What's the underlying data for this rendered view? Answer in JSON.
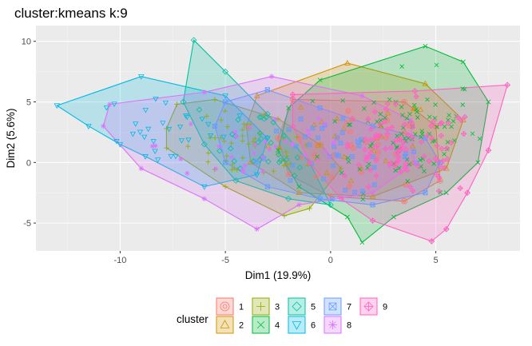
{
  "chart_data": {
    "type": "scatter",
    "title": "cluster:kmeans k:9",
    "xlabel": "Dim1 (19.9%)",
    "ylabel": "Dim2 (5.6%)",
    "xlim": [
      -14,
      9
    ],
    "ylim": [
      -7.3,
      11.3
    ],
    "x_ticks": [
      -10,
      -5,
      0,
      5
    ],
    "y_ticks": [
      -5,
      0,
      5,
      10
    ],
    "x_tick_labels": [
      "-10",
      "-5",
      "0",
      "5"
    ],
    "y_tick_labels": [
      "-5",
      "0",
      "5",
      "10"
    ],
    "grid": true,
    "legend": {
      "title": "cluster",
      "position": "bottom"
    },
    "series": [
      {
        "name": "1",
        "color": "#F8766D",
        "shape": "circle",
        "hull": [
          [
            -1.8,
            5.2
          ],
          [
            3.5,
            5.0
          ],
          [
            5.0,
            3.0
          ],
          [
            5.2,
            -1.5
          ],
          [
            3.5,
            -3.2
          ],
          [
            0.0,
            -2.8
          ],
          [
            -2.0,
            -1.0
          ],
          [
            -2.5,
            2.0
          ]
        ],
        "center": [
          1.5,
          1.0
        ],
        "spread": [
          1.8,
          1.6
        ],
        "count": 30
      },
      {
        "name": "2",
        "color": "#D39200",
        "shape": "triangle",
        "hull": [
          [
            -3.5,
            5.5
          ],
          [
            0.8,
            8.2
          ],
          [
            4.5,
            6.5
          ],
          [
            6.3,
            3.5
          ],
          [
            5.5,
            -0.5
          ],
          [
            2.0,
            -2.8
          ],
          [
            -1.5,
            -2.5
          ],
          [
            -3.8,
            0.0
          ],
          [
            -4.0,
            3.0
          ]
        ],
        "center": [
          1.0,
          1.5
        ],
        "spread": [
          2.0,
          2.0
        ],
        "count": 30
      },
      {
        "name": "3",
        "color": "#93AA00",
        "shape": "plus",
        "hull": [
          [
            -7.8,
            2.8
          ],
          [
            -7.3,
            4.8
          ],
          [
            -5.5,
            5.2
          ],
          [
            -2.5,
            3.6
          ],
          [
            -0.5,
            1.5
          ],
          [
            0.5,
            -0.5
          ],
          [
            -1.0,
            -3.8
          ],
          [
            -2.2,
            -4.4
          ],
          [
            -5.0,
            -2.0
          ],
          [
            -7.8,
            1.2
          ]
        ],
        "center": [
          -4.0,
          1.0
        ],
        "spread": [
          1.6,
          1.3
        ],
        "count": 45
      },
      {
        "name": "4",
        "color": "#00BA38",
        "shape": "cross",
        "hull": [
          [
            -2.0,
            4.5
          ],
          [
            -0.5,
            6.8
          ],
          [
            4.5,
            9.6
          ],
          [
            6.3,
            8.3
          ],
          [
            7.5,
            5.0
          ],
          [
            7.0,
            0.0
          ],
          [
            5.5,
            -2.5
          ],
          [
            3.0,
            -4.5
          ],
          [
            1.5,
            -6.6
          ],
          [
            0.8,
            -4.5
          ],
          [
            -1.5,
            -2.0
          ],
          [
            -2.5,
            1.0
          ]
        ],
        "center": [
          3.5,
          2.5
        ],
        "spread": [
          1.9,
          2.4
        ],
        "count": 90
      },
      {
        "name": "5",
        "color": "#00C19F",
        "shape": "diamond",
        "hull": [
          [
            -6.5,
            10.1
          ],
          [
            -5.0,
            7.5
          ],
          [
            -3.0,
            4.0
          ],
          [
            -1.0,
            0.0
          ],
          [
            0.0,
            -3.5
          ],
          [
            -2.0,
            -3.0
          ],
          [
            -4.5,
            -1.5
          ],
          [
            -6.0,
            1.5
          ],
          [
            -7.0,
            5.0
          ]
        ],
        "center": [
          -3.0,
          2.0
        ],
        "spread": [
          1.8,
          2.0
        ],
        "count": 30
      },
      {
        "name": "6",
        "color": "#00B9E3",
        "shape": "triangle-down",
        "hull": [
          [
            -13.0,
            4.7
          ],
          [
            -9.0,
            7.1
          ],
          [
            -5.0,
            5.5
          ],
          [
            -3.0,
            2.0
          ],
          [
            -3.5,
            -1.0
          ],
          [
            -6.0,
            -2.0
          ],
          [
            -8.8,
            0.5
          ],
          [
            -10.0,
            1.5
          ],
          [
            -11.5,
            3.0
          ]
        ],
        "center": [
          -7.5,
          2.5
        ],
        "spread": [
          1.8,
          1.6
        ],
        "count": 28
      },
      {
        "name": "7",
        "color": "#619CFF",
        "shape": "square-x",
        "hull": [
          [
            -5.0,
            5.0
          ],
          [
            -3.0,
            6.0
          ],
          [
            -0.5,
            4.5
          ],
          [
            2.0,
            3.0
          ],
          [
            4.5,
            2.0
          ],
          [
            5.2,
            0.0
          ],
          [
            4.5,
            -2.5
          ],
          [
            2.0,
            -3.5
          ],
          [
            -0.5,
            -3.0
          ],
          [
            -3.0,
            -2.0
          ],
          [
            -5.0,
            0.0
          ],
          [
            -5.5,
            3.0
          ]
        ],
        "center": [
          0.0,
          0.5
        ],
        "spread": [
          2.2,
          1.6
        ],
        "count": 40
      },
      {
        "name": "8",
        "color": "#DB72FB",
        "shape": "asterisk",
        "hull": [
          [
            -10.5,
            4.8
          ],
          [
            -6.0,
            5.8
          ],
          [
            -2.8,
            7.1
          ],
          [
            1.5,
            5.5
          ],
          [
            3.8,
            3.5
          ],
          [
            4.0,
            0.0
          ],
          [
            2.0,
            -2.5
          ],
          [
            -1.5,
            -3.5
          ],
          [
            -3.5,
            -5.5
          ],
          [
            -6.0,
            -3.0
          ],
          [
            -9.0,
            -0.5
          ],
          [
            -10.8,
            3.0
          ]
        ],
        "center": [
          -3.0,
          1.5
        ],
        "spread": [
          2.6,
          2.0
        ],
        "count": 35
      },
      {
        "name": "9",
        "color": "#FF61C3",
        "shape": "diamond-plus",
        "hull": [
          [
            -1.8,
            5.6
          ],
          [
            4.0,
            5.9
          ],
          [
            8.4,
            6.4
          ],
          [
            7.5,
            1.0
          ],
          [
            6.5,
            -2.5
          ],
          [
            5.5,
            -5.5
          ],
          [
            4.8,
            -6.5
          ],
          [
            2.0,
            -4.8
          ],
          [
            0.5,
            -3.0
          ],
          [
            -1.0,
            0.0
          ],
          [
            -1.8,
            3.0
          ]
        ],
        "center": [
          3.5,
          0.8
        ],
        "spread": [
          1.8,
          1.9
        ],
        "count": 90
      }
    ]
  }
}
